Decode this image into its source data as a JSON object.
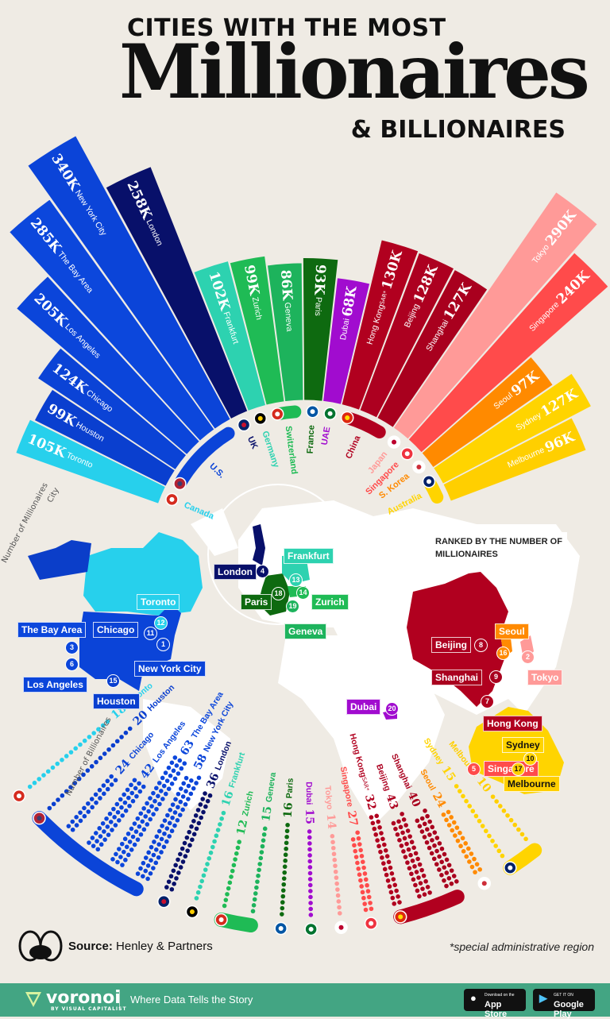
{
  "title": {
    "line1": "CITIES WITH THE MOST",
    "line2": "Millionaires",
    "line3": "& BILLIONAIRES"
  },
  "chart_data": {
    "type": "radial bar + dot plot",
    "millionaires_axis_label": "Number of Millionaires",
    "city_axis_label": "City",
    "billionaires_axis_label": "Number of Billionaires",
    "cities": [
      {
        "name": "Toronto",
        "millionaires": "105K",
        "billionaires": 18,
        "rank": 12,
        "country": 0,
        "color": "#27d0ec"
      },
      {
        "name": "Houston",
        "millionaires": "99K",
        "billionaires": 20,
        "rank": 15,
        "country": 1,
        "color": "#0a3fcf"
      },
      {
        "name": "Chicago",
        "millionaires": "124K",
        "billionaires": 24,
        "rank": 11,
        "country": 1,
        "color": "#0b43d6"
      },
      {
        "name": "Los Angeles",
        "millionaires": "205K",
        "billionaires": 42,
        "rank": 6,
        "country": 1,
        "color": "#0b45da"
      },
      {
        "name": "The Bay Area",
        "millionaires": "285K",
        "billionaires": 63,
        "rank": 3,
        "country": 1,
        "color": "#0c47dc"
      },
      {
        "name": "New York City",
        "millionaires": "340K",
        "billionaires": 58,
        "rank": 1,
        "country": 1,
        "color": "#0b44d8"
      },
      {
        "name": "London",
        "millionaires": "258K",
        "billionaires": 36,
        "rank": 4,
        "country": 2,
        "color": "#08106a"
      },
      {
        "name": "Frankfurt",
        "millionaires": "102K",
        "billionaires": 16,
        "rank": 13,
        "country": 3,
        "color": "#2dd2b0"
      },
      {
        "name": "Zurich",
        "millionaires": "99K",
        "billionaires": 12,
        "rank": 14,
        "country": 4,
        "color": "#1fbb55"
      },
      {
        "name": "Geneva",
        "millionaires": "86K",
        "billionaires": 15,
        "rank": 19,
        "country": 4,
        "color": "#1db35c"
      },
      {
        "name": "Paris",
        "millionaires": "93K",
        "billionaires": 16,
        "rank": 18,
        "country": 5,
        "color": "#0e6a10"
      },
      {
        "name": "Dubai",
        "millionaires": "68K",
        "billionaires": 15,
        "rank": 20,
        "country": 6,
        "color": "#a10ccf"
      },
      {
        "name": "Hong Kong",
        "suffix": "SAR*",
        "millionaires": "130K",
        "billionaires": 32,
        "rank": 7,
        "country": 7,
        "color": "#b1001f"
      },
      {
        "name": "Beijing",
        "millionaires": "128K",
        "billionaires": 43,
        "rank": 8,
        "country": 7,
        "color": "#ad0020"
      },
      {
        "name": "Shanghai",
        "millionaires": "127K",
        "billionaires": 40,
        "rank": 9,
        "country": 7,
        "color": "#a9001e"
      },
      {
        "name": "Tokyo",
        "millionaires": "290K",
        "billionaires": 14,
        "rank": 2,
        "country": 8,
        "color": "#ff9a98"
      },
      {
        "name": "Singapore",
        "millionaires": "240K",
        "billionaires": 27,
        "rank": 5,
        "country": 9,
        "color": "#ff4b4b"
      },
      {
        "name": "Seoul",
        "millionaires": "97K",
        "billionaires": 24,
        "rank": 16,
        "country": 10,
        "color": "#ff8a00"
      },
      {
        "name": "Sydney",
        "millionaires": "127K",
        "billionaires": 15,
        "rank": 10,
        "country": 11,
        "color": "#ffd400"
      },
      {
        "name": "Melbourne",
        "millionaires": "96K",
        "billionaires": 10,
        "rank": 17,
        "country": 11,
        "color": "#ffcf00"
      }
    ],
    "countries": [
      {
        "name": "Canada",
        "color": "#27d0ec",
        "flag": [
          "#d52b1e",
          "#ffffff"
        ]
      },
      {
        "name": "U.S.",
        "color": "#0b44d8",
        "flag": [
          "#b22234",
          "#3c3b6e"
        ]
      },
      {
        "name": "UK",
        "color": "#08106a",
        "flag": [
          "#012169",
          "#c8102e"
        ]
      },
      {
        "name": "Germany",
        "color": "#2dd2b0",
        "flag": [
          "#000000",
          "#ffce00"
        ]
      },
      {
        "name": "Switzerland",
        "color": "#1fbb55",
        "flag": [
          "#d52b1e",
          "#ffffff"
        ]
      },
      {
        "name": "France",
        "color": "#0e6a10",
        "flag": [
          "#0055a4",
          "#ffffff"
        ]
      },
      {
        "name": "UAE",
        "color": "#a10ccf",
        "flag": [
          "#00732f",
          "#ffffff"
        ]
      },
      {
        "name": "China",
        "color": "#b1001f",
        "flag": [
          "#de2910",
          "#ffde00"
        ]
      },
      {
        "name": "Japan",
        "color": "#ff9a98",
        "flag": [
          "#ffffff",
          "#bc002d"
        ]
      },
      {
        "name": "Singapore",
        "color": "#ff4b4b",
        "flag": [
          "#ef3340",
          "#ffffff"
        ]
      },
      {
        "name": "S. Korea",
        "color": "#ff8a00",
        "flag": [
          "#ffffff",
          "#cd2e3a"
        ]
      },
      {
        "name": "Australia",
        "color": "#ffd400",
        "flag": [
          "#012169",
          "#ffffff"
        ]
      }
    ]
  },
  "map": {
    "ranked_note": "RANKED BY THE NUMBER OF MILLIONAIRES"
  },
  "footer": {
    "source_label": "Source:",
    "source": "Henley & Partners",
    "note": "*special administrative region",
    "brand": "voronoi",
    "brand_sub": "BY VISUAL CAPITALIST",
    "tagline": "Where Data Tells the Story",
    "app_store_small": "Download on the",
    "app_store": "App Store",
    "google_play_small": "GET IT ON",
    "google_play": "Google Play"
  }
}
